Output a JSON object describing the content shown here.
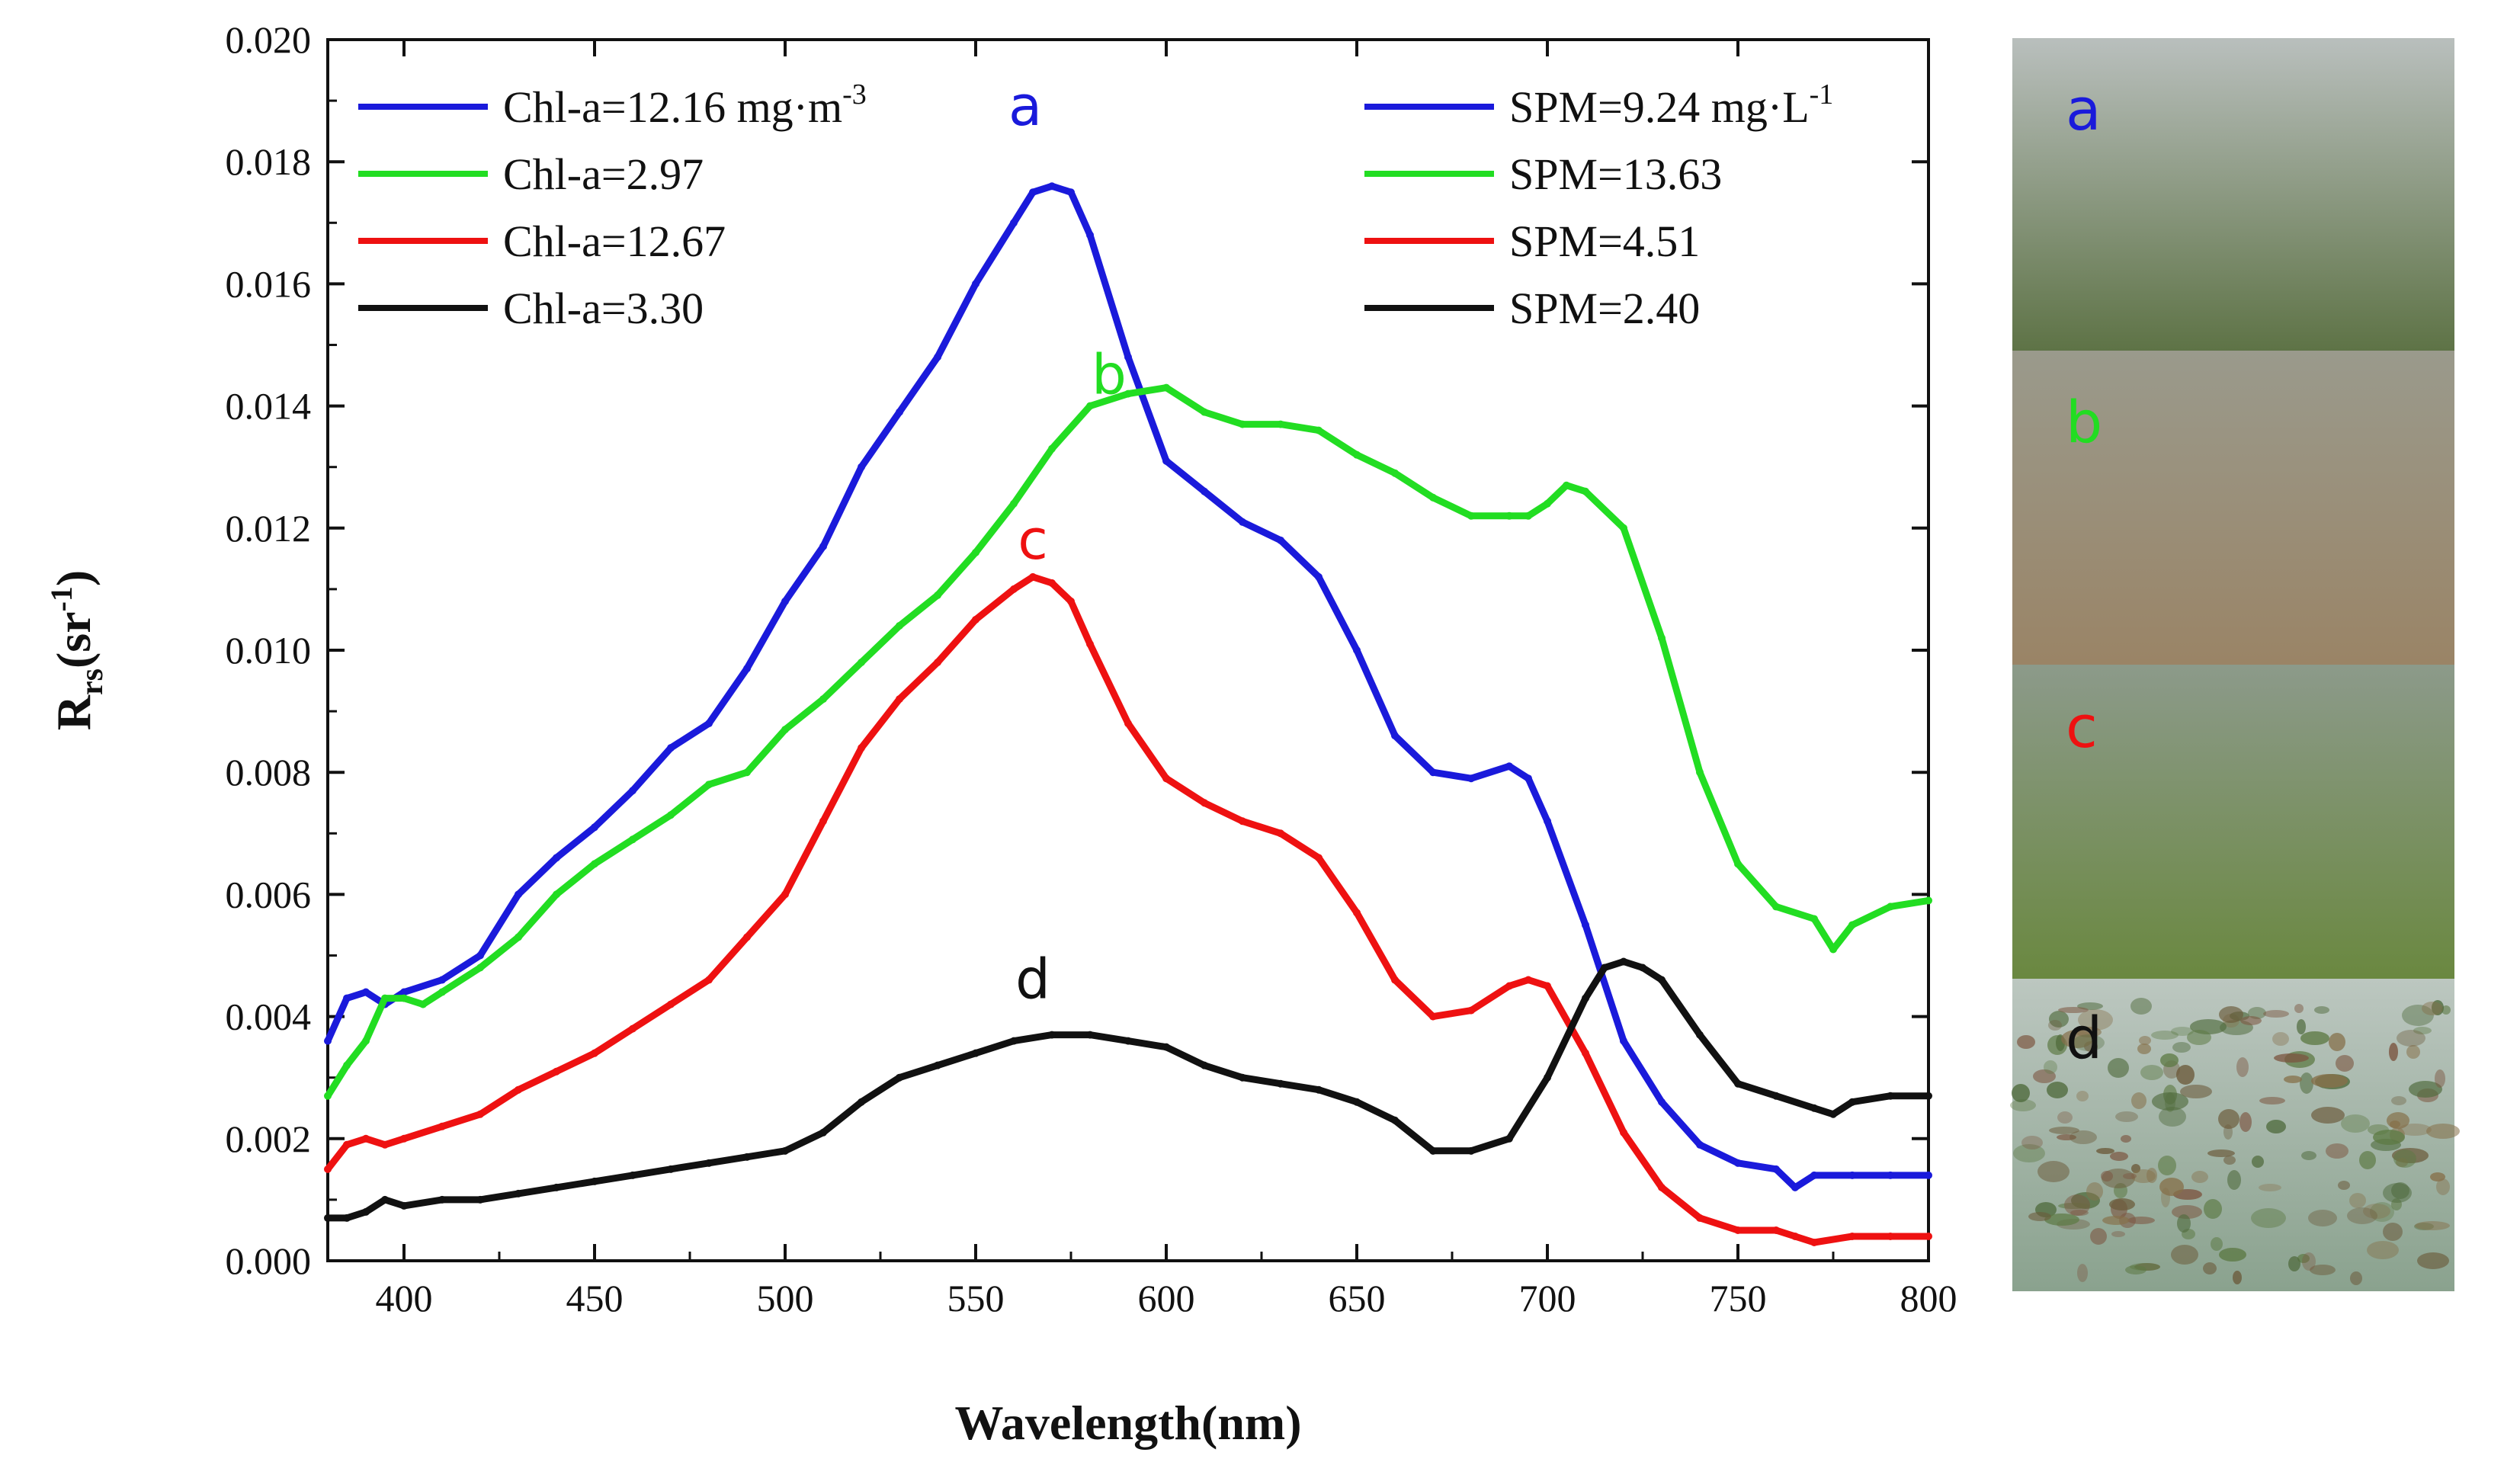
{
  "chart_data": {
    "type": "line",
    "title": "",
    "xlabel": "Wavelength(nm)",
    "ylabel_main": "R",
    "ylabel_sub": "rs",
    "ylabel_unit_open": "(sr",
    "ylabel_unit_sup": "-1",
    "ylabel_unit_close": ")",
    "xlim": [
      380,
      800
    ],
    "ylim": [
      0,
      0.02
    ],
    "xticks": [
      "400",
      "450",
      "500",
      "550",
      "600",
      "650",
      "700",
      "750",
      "800"
    ],
    "yticks": [
      "0.000",
      "0.002",
      "0.004",
      "0.006",
      "0.008",
      "0.010",
      "0.012",
      "0.014",
      "0.016",
      "0.018",
      "0.020"
    ],
    "grid": false,
    "legend_position": "top",
    "series": [
      {
        "name": "a",
        "color": "#1a1adb",
        "chl_label": "Chl-a=12.16 mg·m",
        "chl_sup": "-3",
        "spm_label": "SPM=9.24 mg·L",
        "spm_sup": "-1",
        "x": [
          380,
          385,
          390,
          395,
          400,
          410,
          420,
          430,
          440,
          450,
          460,
          470,
          480,
          490,
          500,
          510,
          520,
          530,
          540,
          550,
          560,
          565,
          570,
          575,
          580,
          590,
          600,
          610,
          620,
          630,
          640,
          650,
          660,
          670,
          680,
          690,
          695,
          700,
          710,
          720,
          730,
          740,
          750,
          760,
          765,
          770,
          780,
          790,
          800
        ],
        "y": [
          0.0036,
          0.0043,
          0.0044,
          0.0042,
          0.0044,
          0.0046,
          0.005,
          0.006,
          0.0066,
          0.0071,
          0.0077,
          0.0084,
          0.0088,
          0.0097,
          0.0108,
          0.0117,
          0.013,
          0.0139,
          0.0148,
          0.016,
          0.017,
          0.0175,
          0.0176,
          0.0175,
          0.0168,
          0.0148,
          0.0131,
          0.0126,
          0.0121,
          0.0118,
          0.0112,
          0.01,
          0.0086,
          0.008,
          0.0079,
          0.0081,
          0.0079,
          0.0072,
          0.0055,
          0.0036,
          0.0026,
          0.0019,
          0.0016,
          0.0015,
          0.0012,
          0.0014,
          0.0014,
          0.0014,
          0.0014
        ]
      },
      {
        "name": "b",
        "color": "#22dd22",
        "chl_label": "Chl-a=2.97",
        "spm_label": "SPM=13.63",
        "x": [
          380,
          385,
          390,
          395,
          400,
          405,
          410,
          420,
          430,
          440,
          450,
          460,
          470,
          480,
          490,
          500,
          510,
          520,
          530,
          540,
          550,
          560,
          570,
          580,
          590,
          600,
          610,
          620,
          630,
          640,
          650,
          660,
          670,
          680,
          690,
          695,
          700,
          705,
          710,
          720,
          730,
          740,
          750,
          760,
          770,
          775,
          780,
          790,
          800
        ],
        "y": [
          0.0027,
          0.0032,
          0.0036,
          0.0043,
          0.0043,
          0.0042,
          0.0044,
          0.0048,
          0.0053,
          0.006,
          0.0065,
          0.0069,
          0.0073,
          0.0078,
          0.008,
          0.0087,
          0.0092,
          0.0098,
          0.0104,
          0.0109,
          0.0116,
          0.0124,
          0.0133,
          0.014,
          0.0142,
          0.0143,
          0.0139,
          0.0137,
          0.0137,
          0.0136,
          0.0132,
          0.0129,
          0.0125,
          0.0122,
          0.0122,
          0.0122,
          0.0124,
          0.0127,
          0.0126,
          0.012,
          0.0102,
          0.008,
          0.0065,
          0.0058,
          0.0056,
          0.0051,
          0.0055,
          0.0058,
          0.0059
        ]
      },
      {
        "name": "c",
        "color": "#ee1111",
        "chl_label": "Chl-a=12.67",
        "spm_label": "SPM=4.51",
        "x": [
          380,
          385,
          390,
          395,
          400,
          410,
          420,
          430,
          440,
          450,
          460,
          470,
          480,
          490,
          500,
          510,
          520,
          530,
          540,
          550,
          560,
          565,
          570,
          575,
          580,
          590,
          600,
          610,
          620,
          630,
          640,
          650,
          660,
          670,
          680,
          690,
          695,
          700,
          710,
          720,
          730,
          740,
          750,
          760,
          765,
          770,
          780,
          790,
          800
        ],
        "y": [
          0.0015,
          0.0019,
          0.002,
          0.0019,
          0.002,
          0.0022,
          0.0024,
          0.0028,
          0.0031,
          0.0034,
          0.0038,
          0.0042,
          0.0046,
          0.0053,
          0.006,
          0.0072,
          0.0084,
          0.0092,
          0.0098,
          0.0105,
          0.011,
          0.0112,
          0.0111,
          0.0108,
          0.0101,
          0.0088,
          0.0079,
          0.0075,
          0.0072,
          0.007,
          0.0066,
          0.0057,
          0.0046,
          0.004,
          0.0041,
          0.0045,
          0.0046,
          0.0045,
          0.0034,
          0.0021,
          0.0012,
          0.0007,
          0.0005,
          0.0005,
          0.0004,
          0.0003,
          0.0004,
          0.0004,
          0.0004
        ]
      },
      {
        "name": "d",
        "color": "#111111",
        "chl_label": "Chl-a=3.30",
        "spm_label": "SPM=2.40",
        "x": [
          380,
          385,
          390,
          395,
          400,
          410,
          420,
          430,
          440,
          450,
          460,
          470,
          480,
          490,
          500,
          510,
          520,
          530,
          540,
          550,
          560,
          570,
          580,
          590,
          600,
          610,
          620,
          630,
          640,
          650,
          660,
          670,
          680,
          690,
          700,
          710,
          715,
          720,
          725,
          730,
          740,
          750,
          760,
          770,
          775,
          780,
          790,
          800
        ],
        "y": [
          0.0007,
          0.0007,
          0.0008,
          0.001,
          0.0009,
          0.001,
          0.001,
          0.0011,
          0.0012,
          0.0013,
          0.0014,
          0.0015,
          0.0016,
          0.0017,
          0.0018,
          0.0021,
          0.0026,
          0.003,
          0.0032,
          0.0034,
          0.0036,
          0.0037,
          0.0037,
          0.0036,
          0.0035,
          0.0032,
          0.003,
          0.0029,
          0.0028,
          0.0026,
          0.0023,
          0.0018,
          0.0018,
          0.002,
          0.003,
          0.0043,
          0.0048,
          0.0049,
          0.0048,
          0.0046,
          0.0037,
          0.0029,
          0.0027,
          0.0025,
          0.0024,
          0.0026,
          0.0027,
          0.0027
        ]
      }
    ],
    "annotations": [
      {
        "text": "a",
        "x": 563,
        "y": 0.0186,
        "color": "#1a1adb"
      },
      {
        "text": "b",
        "x": 585,
        "y": 0.0142,
        "color": "#22dd22"
      },
      {
        "text": "c",
        "x": 565,
        "y": 0.0115,
        "color": "#ee1111"
      },
      {
        "text": "d",
        "x": 565,
        "y": 0.0043,
        "color": "#111111"
      }
    ]
  },
  "photos": [
    {
      "label": "a",
      "label_color": "#1a1adb",
      "top": "#b9bfbd",
      "bottom": "#5e7346"
    },
    {
      "label": "b",
      "label_color": "#22dd22",
      "top": "#9a9a8c",
      "bottom": "#9a8466"
    },
    {
      "label": "c",
      "label_color": "#ee1111",
      "top": "#8c9a8a",
      "bottom": "#6a8840"
    },
    {
      "label": "d",
      "label_color": "#111111",
      "top": "#bcc7c0",
      "bottom": "#8aa28e"
    }
  ]
}
